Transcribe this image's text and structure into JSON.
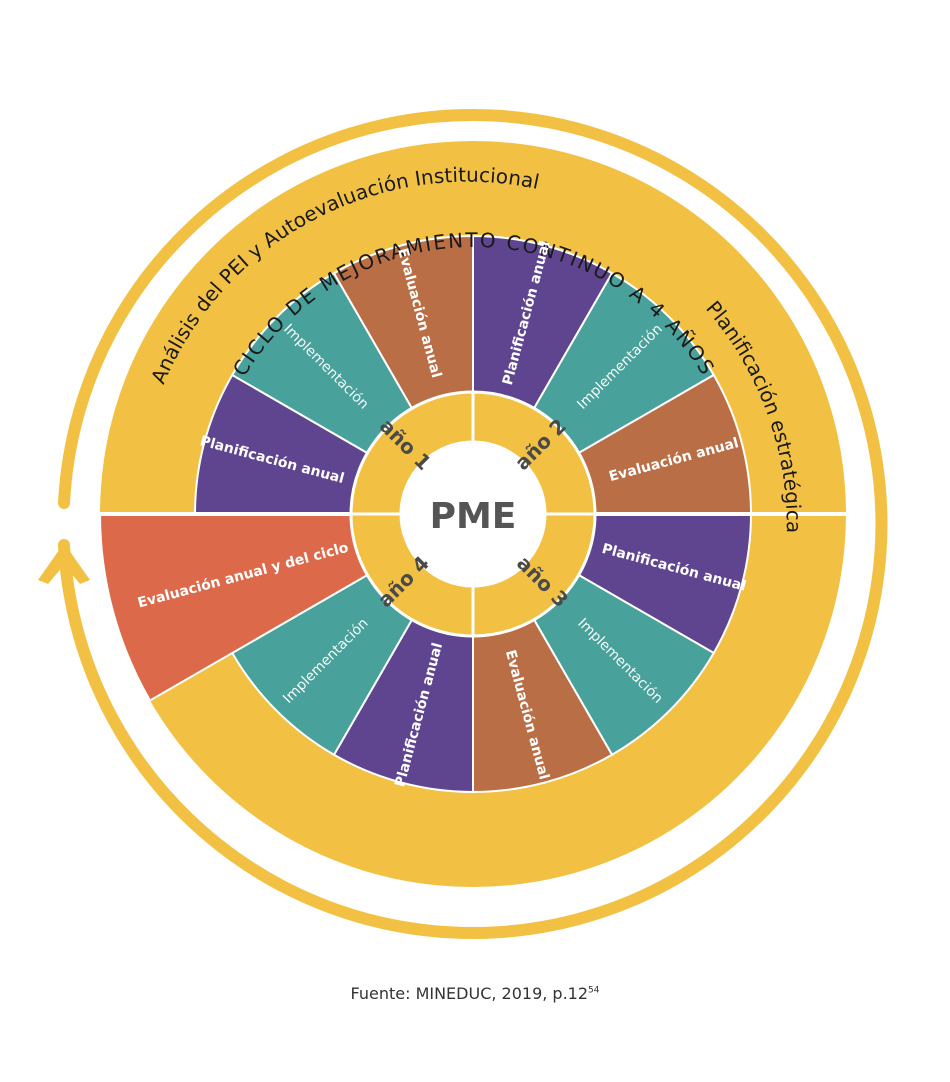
{
  "center": {
    "label": "PME"
  },
  "outer_cycle": {
    "label": "CICLO DE MEJORAMIENTO CONTINUO A 4 AÑOS"
  },
  "outer_ring": {
    "left_label": "Análisis del PEI y Autoevaluación Institucional",
    "right_label": "Planificación estratégica"
  },
  "years": [
    {
      "label": "año 1",
      "segments": [
        "Planificación anual",
        "Implementación",
        "Evaluación anual"
      ]
    },
    {
      "label": "año 2",
      "segments": [
        "Planificación anual",
        "Implementación",
        "Evaluación anual"
      ]
    },
    {
      "label": "año 3",
      "segments": [
        "Planificación anual",
        "Implementación",
        "Evaluación anual"
      ]
    },
    {
      "label": "año 4",
      "segments": [
        "Planificación anual",
        "Implementación",
        "Evaluación anual y del ciclo"
      ]
    }
  ],
  "colors": {
    "ring_yellow": "#f2c144",
    "planificacion": "#5f4590",
    "implementacion": "#48a19b",
    "evaluacion": "#b96e46",
    "evaluacion_ciclo": "#dc6a4a",
    "center_fill": "#ffffff",
    "center_text": "#555555"
  },
  "caption": {
    "text": "Fuente: MINEDUC, 2019, p.12",
    "superscript": "54"
  }
}
